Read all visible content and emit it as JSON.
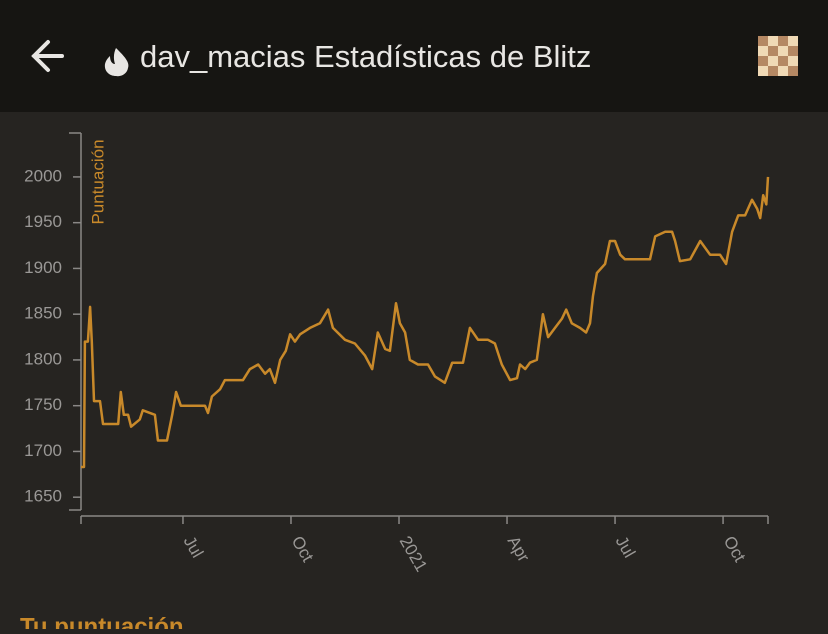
{
  "header": {
    "title": "dav_macias Estadísticas de Blitz"
  },
  "chart_data": {
    "type": "line",
    "ylabel": "Puntuación",
    "color": "#c8892a",
    "x": [
      2020.264,
      2020.271,
      2020.273,
      2020.28,
      2020.285,
      2020.289,
      2020.294,
      2020.308,
      2020.315,
      2020.35,
      2020.356,
      2020.363,
      2020.373,
      2020.38,
      2020.4,
      2020.407,
      2020.435,
      2020.442,
      2020.463,
      2020.475,
      2020.484,
      2020.495,
      2020.551,
      2020.558,
      2020.567,
      2020.586,
      2020.597,
      2020.639,
      2020.655,
      2020.674,
      2020.69,
      2020.701,
      2020.713,
      2020.725,
      2020.738,
      2020.748,
      2020.759,
      2020.771,
      2020.794,
      2020.817,
      2020.836,
      2020.847,
      2020.875,
      2020.898,
      2020.921,
      2020.938,
      2020.951,
      2020.968,
      2020.979,
      2020.993,
      2021.002,
      2021.014,
      2021.025,
      2021.044,
      2021.067,
      2021.083,
      2021.106,
      2021.123,
      2021.148,
      2021.164,
      2021.183,
      2021.206,
      2021.222,
      2021.238,
      2021.257,
      2021.273,
      2021.28,
      2021.292,
      2021.303,
      2021.319,
      2021.333,
      2021.345,
      2021.361,
      2021.377,
      2021.387,
      2021.4,
      2021.419,
      2021.433,
      2021.442,
      2021.449,
      2021.458,
      2021.477,
      2021.488,
      2021.5,
      2021.512,
      2021.523,
      2021.558,
      2021.581,
      2021.593,
      2021.616,
      2021.632,
      2021.639,
      2021.65,
      2021.674,
      2021.697,
      2021.72,
      2021.743,
      2021.757,
      2021.771,
      2021.785,
      2021.801,
      2021.817,
      2021.829,
      2021.836,
      2021.843,
      2021.85,
      2021.854
    ],
    "values": [
      1683,
      1683,
      1820,
      1820,
      1858,
      1820,
      1755,
      1755,
      1730,
      1730,
      1765,
      1740,
      1740,
      1727,
      1735,
      1745,
      1740,
      1712,
      1712,
      1740,
      1765,
      1750,
      1750,
      1742,
      1760,
      1768,
      1778,
      1778,
      1790,
      1795,
      1785,
      1790,
      1775,
      1800,
      1810,
      1828,
      1820,
      1828,
      1835,
      1840,
      1855,
      1835,
      1822,
      1818,
      1805,
      1790,
      1830,
      1812,
      1810,
      1862,
      1840,
      1830,
      1800,
      1795,
      1795,
      1782,
      1775,
      1797,
      1797,
      1835,
      1822,
      1822,
      1818,
      1795,
      1778,
      1780,
      1795,
      1790,
      1797,
      1800,
      1850,
      1825,
      1835,
      1845,
      1855,
      1840,
      1835,
      1830,
      1840,
      1870,
      1895,
      1905,
      1930,
      1930,
      1915,
      1910,
      1910,
      1910,
      1935,
      1940,
      1940,
      1930,
      1908,
      1910,
      1930,
      1915,
      1915,
      1905,
      1940,
      1958,
      1958,
      1975,
      1965,
      1955,
      1980,
      1970,
      2000
    ],
    "xlim": [
      2020.264,
      2021.854
    ],
    "xticks": [
      {
        "value": 2020.5,
        "label": "Jul"
      },
      {
        "value": 2020.75,
        "label": "Oct"
      },
      {
        "value": 2021,
        "label": "2021"
      },
      {
        "value": 2021.25,
        "label": "Apr"
      },
      {
        "value": 2021.5,
        "label": "Jul"
      },
      {
        "value": 2021.75,
        "label": "Oct"
      }
    ],
    "ylim": [
      1636,
      2048
    ],
    "yticks": [
      1650,
      1700,
      1750,
      1800,
      1850,
      1900,
      1950,
      2000
    ]
  },
  "section_title": "Tu puntuación"
}
